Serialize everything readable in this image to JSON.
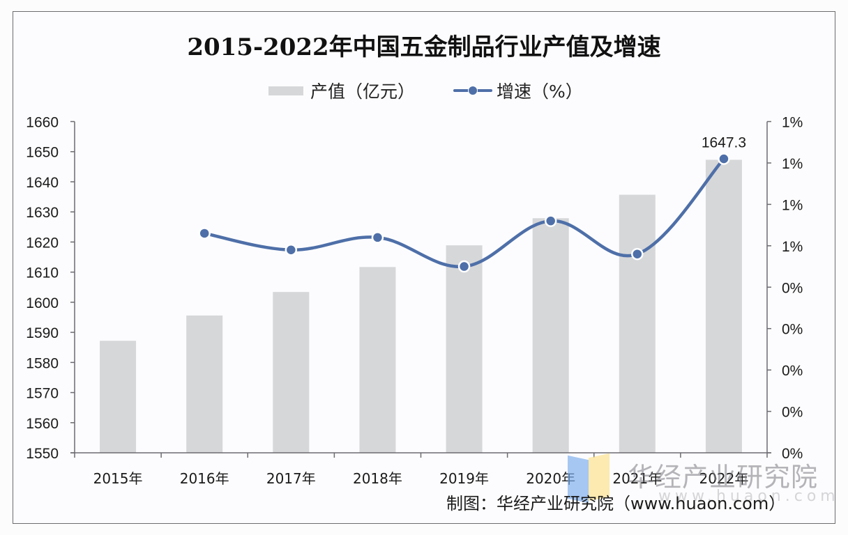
{
  "title": "2015-2022年中国五金制品行业产值及增速",
  "legend": {
    "bar_label": "产值（亿元）",
    "line_label": "增速（%）"
  },
  "source": "制图：华经产业研究院（www.huaon.com）",
  "watermark": {
    "text": "华经产业研究院",
    "url": "www.huaon.com"
  },
  "colors": {
    "bar": "#d6d7d9",
    "line": "#4e6fa8",
    "axis": "#6b6b70",
    "background": "#fcfcfe"
  },
  "chart_data": {
    "type": "bar+line",
    "title": "2015-2022年中国五金制品行业产值及增速",
    "categories": [
      "2015年",
      "2016年",
      "2017年",
      "2018年",
      "2019年",
      "2020年",
      "2021年",
      "2022年"
    ],
    "series": [
      {
        "name": "产值（亿元）",
        "type": "bar",
        "axis": "left",
        "values": [
          1587.2,
          1595.6,
          1603.4,
          1611.7,
          1618.9,
          1627.9,
          1635.7,
          1647.3
        ],
        "data_labels": {
          "7": "1647.3"
        }
      },
      {
        "name": "增速（%）",
        "type": "line",
        "axis": "right",
        "smooth": true,
        "values": [
          null,
          0.53,
          0.49,
          0.52,
          0.45,
          0.56,
          0.48,
          0.71
        ]
      }
    ],
    "left_axis": {
      "min": 1550,
      "max": 1660,
      "step": 10,
      "tick_labels": [
        "1550",
        "1560",
        "1570",
        "1580",
        "1590",
        "1600",
        "1610",
        "1620",
        "1630",
        "1640",
        "1650",
        "1660"
      ]
    },
    "right_axis": {
      "min": 0,
      "max": 0.8,
      "step": 0.1,
      "tick_labels": [
        "0%",
        "0%",
        "0%",
        "0%",
        "0%",
        "1%",
        "1%",
        "1%",
        "1%"
      ]
    },
    "xlabel": "",
    "ylabel": "",
    "grid": false,
    "legend_position": "top"
  }
}
